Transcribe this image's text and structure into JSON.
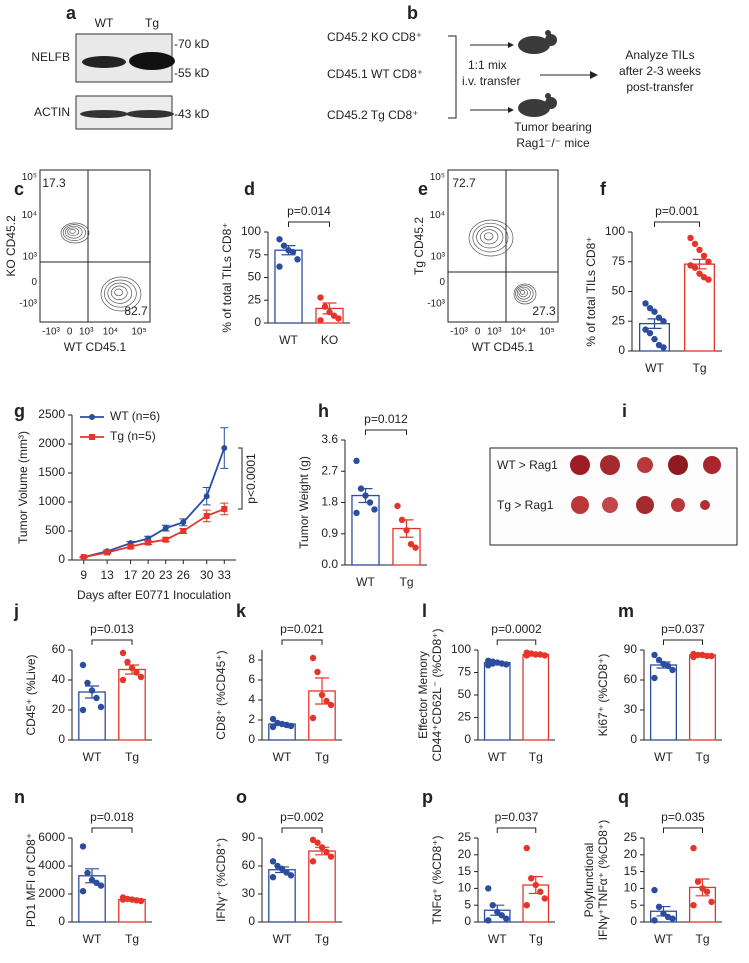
{
  "blot": {
    "panel": "a",
    "lanes": [
      "WT",
      "Tg"
    ],
    "rows": [
      "NELFB",
      "ACTIN"
    ],
    "markers": [
      "-70 kD",
      "-55 kD",
      "-43 kD"
    ]
  },
  "schematic": {
    "panel": "b",
    "donors": [
      "CD45.2 KO CD8⁺",
      "CD45.1 WT CD8⁺",
      "CD45.2 Tg CD8⁺"
    ],
    "transfer": [
      "1:1 mix",
      "i.v. transfer"
    ],
    "recipient": [
      "Tumor bearing",
      "Rag1⁻/⁻ mice"
    ],
    "readout": [
      "Analyze TILs",
      "after 2-3 weeks",
      "post-transfer"
    ]
  },
  "flow_plots": [
    {
      "panel": "c",
      "ylabel": "KO CD45.2",
      "xlabel": "WT CD45.1",
      "quadrants": [
        17.3,
        82.7
      ],
      "ytick_labels": [
        "10⁵",
        "10⁴",
        "10³",
        "0",
        "-10³"
      ],
      "xtick_labels": [
        "-10³",
        "0",
        "10³",
        "10⁴",
        "10⁵"
      ]
    },
    {
      "panel": "e",
      "ylabel": "Tg CD45.2",
      "xlabel": "WT CD45.1",
      "quadrants": [
        72.7,
        27.3
      ],
      "ytick_labels": [
        "10⁵",
        "10⁴",
        "10³",
        "0",
        "-10³"
      ],
      "xtick_labels": [
        "-10³",
        "0",
        "10³",
        "10⁴",
        "10⁵"
      ]
    }
  ],
  "photo": {
    "panel": "i",
    "rows": [
      "WT > Rag1",
      "Tg > Rag1"
    ]
  },
  "chart_data": [
    {
      "type": "bar",
      "panel": "d",
      "ylabel": [
        "% of total TILs CD8⁺"
      ],
      "categories": [
        "WT",
        "KO"
      ],
      "colors": [
        "#2c4d9e",
        "#e5352b"
      ],
      "values": [
        80,
        16
      ],
      "errors": [
        5,
        6
      ],
      "points": [
        [
          92,
          85,
          80,
          78,
          70,
          62
        ],
        [
          28,
          18,
          12,
          8,
          5,
          3
        ]
      ],
      "annotation": "p=0.014",
      "ylim": [
        0,
        100
      ],
      "yticks": [
        0,
        25,
        50,
        75,
        100
      ]
    },
    {
      "type": "bar",
      "panel": "f",
      "ylabel": [
        "% of total TILs CD8⁺"
      ],
      "categories": [
        "WT",
        "Tg"
      ],
      "colors": [
        "#2c4d9e",
        "#e5352b"
      ],
      "values": [
        23,
        73
      ],
      "errors": [
        4,
        4
      ],
      "points": [
        [
          40,
          36,
          33,
          28,
          25,
          18,
          15,
          10,
          5,
          3
        ],
        [
          95,
          90,
          85,
          80,
          75,
          72,
          70,
          65,
          62,
          60
        ]
      ],
      "annotation": "p=0.001",
      "ylim": [
        0,
        100
      ],
      "yticks": [
        0,
        25,
        50,
        75,
        100
      ]
    },
    {
      "type": "line",
      "panel": "g",
      "ylabel": "Tumor Volume (mm³)",
      "xlabel": "Days after E0771 Inoculation",
      "x": [
        9,
        13,
        17,
        20,
        23,
        26,
        30,
        33
      ],
      "series": [
        {
          "name": "WT (n=6)",
          "color": "#2c4d9e",
          "values": [
            50,
            150,
            290,
            370,
            550,
            650,
            1100,
            1930
          ],
          "errors": [
            10,
            20,
            30,
            40,
            50,
            60,
            150,
            350
          ]
        },
        {
          "name": "Tg (n=5)",
          "color": "#e5352b",
          "values": [
            50,
            130,
            230,
            300,
            350,
            500,
            760,
            880
          ],
          "errors": [
            10,
            20,
            25,
            30,
            30,
            40,
            100,
            100
          ]
        }
      ],
      "annotation": "p<0.0001",
      "xlim": [
        7,
        35
      ],
      "xticks": [
        9,
        13,
        17,
        20,
        23,
        26,
        30,
        33
      ],
      "ylim": [
        0,
        2500
      ],
      "yticks": [
        0,
        500,
        1000,
        1500,
        2000,
        2500
      ]
    },
    {
      "type": "bar",
      "panel": "h",
      "ylabel": [
        "Tumor Weight (g)"
      ],
      "categories": [
        "WT",
        "Tg"
      ],
      "colors": [
        "#2c4d9e",
        "#e5352b"
      ],
      "values": [
        2.0,
        1.05
      ],
      "errors": [
        0.2,
        0.25
      ],
      "points": [
        [
          3.0,
          2.2,
          2.0,
          1.8,
          1.6,
          1.5
        ],
        [
          1.7,
          1.3,
          1.0,
          0.6,
          0.5
        ]
      ],
      "annotation": "p=0.012",
      "ylim": [
        0,
        3.6
      ],
      "yticks": [
        {
          "value": 0,
          "label": "0.0"
        },
        0.9,
        1.8,
        2.7,
        3.6
      ]
    },
    {
      "type": "bar",
      "panel": "j",
      "ylabel": [
        "CD45⁺ (%Live)"
      ],
      "categories": [
        "WT",
        "Tg"
      ],
      "colors": [
        "#2c4d9e",
        "#e5352b"
      ],
      "values": [
        32,
        47
      ],
      "errors": [
        4,
        3
      ],
      "points": [
        [
          50,
          38,
          33,
          28,
          22,
          20
        ],
        [
          58,
          52,
          48,
          45,
          42,
          40
        ]
      ],
      "annotation": "p=0.013",
      "ylim": [
        0,
        60
      ],
      "yticks": [
        0,
        20,
        40,
        60
      ]
    },
    {
      "type": "bar",
      "panel": "k",
      "ylabel": [
        "CD8⁺ (%CD45⁺)"
      ],
      "categories": [
        "WT",
        "Tg"
      ],
      "colors": [
        "#2c4d9e",
        "#e5352b"
      ],
      "values": [
        1.6,
        4.9
      ],
      "errors": [
        0.1,
        1.3
      ],
      "points": [
        [
          2.1,
          1.7,
          1.6,
          1.5,
          1.4,
          1.3
        ],
        [
          8.2,
          6.8,
          4.5,
          3.9,
          3.5,
          2.2
        ]
      ],
      "annotation": "p=0.021",
      "ylim": [
        0,
        9
      ],
      "yticks": [
        0,
        2,
        4,
        6,
        8
      ]
    },
    {
      "type": "bar",
      "panel": "l",
      "ylabel": [
        "Effector Memory",
        "CD44⁺CD62L⁻ (%CD8⁺)"
      ],
      "categories": [
        "WT",
        "Tg"
      ],
      "colors": [
        "#2c4d9e",
        "#e5352b"
      ],
      "values": [
        86,
        95
      ],
      "errors": [
        1,
        1
      ],
      "points": [
        [
          88,
          87,
          86,
          85,
          84,
          83,
          85
        ],
        [
          97,
          96,
          95,
          95,
          94,
          94
        ]
      ],
      "annotation": "p=0.0002",
      "ylim": [
        0,
        100
      ],
      "yticks": [
        0,
        25,
        50,
        75,
        100
      ]
    },
    {
      "type": "bar",
      "panel": "m",
      "ylabel": [
        "Ki67⁺ (%CD8⁺)"
      ],
      "categories": [
        "WT",
        "Tg"
      ],
      "colors": [
        "#2c4d9e",
        "#e5352b"
      ],
      "values": [
        75,
        85
      ],
      "errors": [
        3,
        1
      ],
      "points": [
        [
          85,
          80,
          76,
          74,
          70,
          62
        ],
        [
          86,
          85,
          85,
          84,
          84,
          83
        ]
      ],
      "annotation": "p=0.037",
      "ylim": [
        0,
        90
      ],
      "yticks": [
        0,
        30,
        60,
        90
      ]
    },
    {
      "type": "bar",
      "panel": "n",
      "ylabel": [
        "PD1 MFI of CD8⁺"
      ],
      "categories": [
        "WT",
        "Tg"
      ],
      "colors": [
        "#2c4d9e",
        "#e5352b"
      ],
      "values": [
        3300,
        1600
      ],
      "errors": [
        500,
        50
      ],
      "points": [
        [
          5400,
          3500,
          3000,
          2800,
          2600,
          2200
        ],
        [
          1750,
          1650,
          1600,
          1550,
          1500,
          1600
        ]
      ],
      "annotation": "p=0.018",
      "ylim": [
        0,
        6000
      ],
      "yticks": [
        0,
        2000,
        4000,
        6000
      ]
    },
    {
      "type": "bar",
      "panel": "o",
      "ylabel": [
        "IFNγ⁺ (%CD8⁺)"
      ],
      "categories": [
        "WT",
        "Tg"
      ],
      "colors": [
        "#2c4d9e",
        "#e5352b"
      ],
      "values": [
        56,
        76
      ],
      "errors": [
        3,
        4
      ],
      "points": [
        [
          65,
          60,
          57,
          53,
          50,
          48
        ],
        [
          88,
          85,
          80,
          75,
          70,
          65
        ]
      ],
      "annotation": "p=0.002",
      "ylim": [
        0,
        90
      ],
      "yticks": [
        0,
        30,
        60,
        90
      ]
    },
    {
      "type": "bar",
      "panel": "p",
      "ylabel": [
        "TNFα⁺ (%CD8⁺)"
      ],
      "categories": [
        "WT",
        "Tg"
      ],
      "colors": [
        "#2c4d9e",
        "#e5352b"
      ],
      "values": [
        3.5,
        11
      ],
      "errors": [
        1.5,
        2.5
      ],
      "points": [
        [
          10,
          5,
          3,
          2,
          1,
          0.5
        ],
        [
          22,
          13,
          11,
          9,
          7,
          5
        ]
      ],
      "annotation": "p=0.037",
      "ylim": [
        0,
        25
      ],
      "yticks": [
        0,
        5,
        10,
        15,
        20,
        25
      ]
    },
    {
      "type": "bar",
      "panel": "q",
      "ylabel": [
        "Polyfunctional",
        "IFNγ⁺TNFα⁺ (%CD8⁺)"
      ],
      "categories": [
        "WT",
        "Tg"
      ],
      "colors": [
        "#2c4d9e",
        "#e5352b"
      ],
      "values": [
        3.2,
        10.3
      ],
      "errors": [
        1.4,
        2.5
      ],
      "points": [
        [
          9.5,
          4.5,
          2.5,
          1.5,
          1,
          0.5
        ],
        [
          22,
          12,
          10,
          9,
          6,
          5
        ]
      ],
      "annotation": "p=0.035",
      "ylim": [
        0,
        25
      ],
      "yticks": [
        0,
        5,
        10,
        15,
        20,
        25
      ]
    }
  ]
}
